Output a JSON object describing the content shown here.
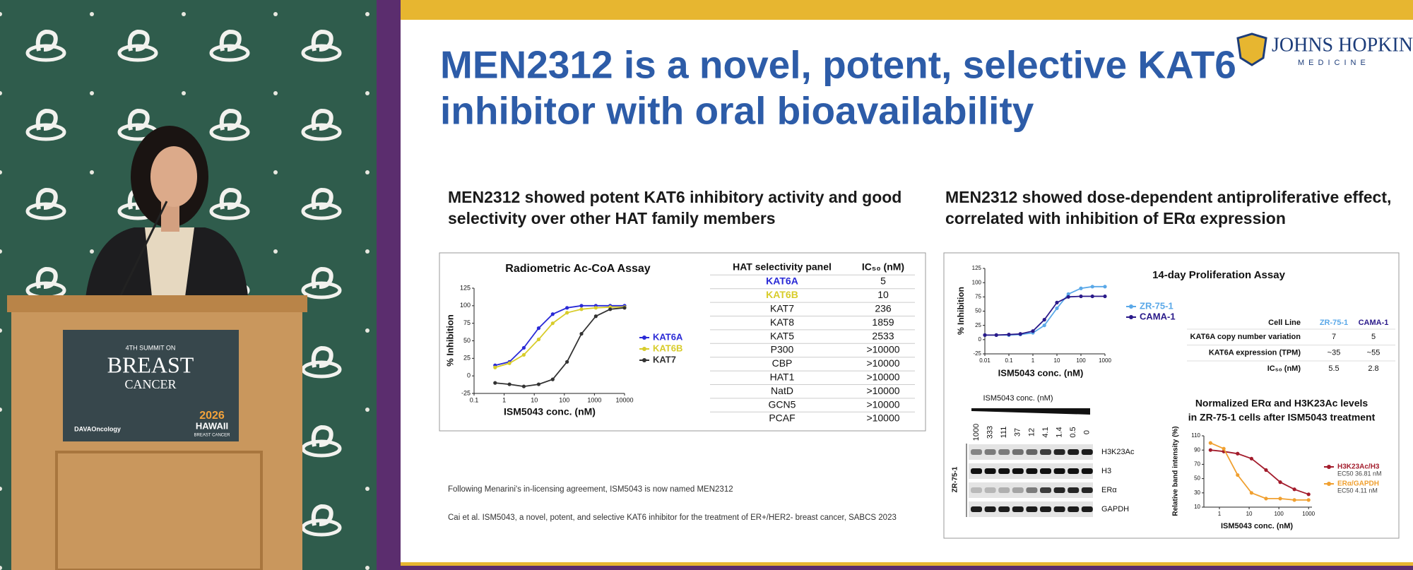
{
  "video": {
    "podium_sign": {
      "edition": "4TH SUMMIT ON",
      "line1": "BREAST",
      "line2": "CANCER",
      "org": "DAVAOncology",
      "year": "2026",
      "place": "HAWAII",
      "place_sub": "BREAST CANCER"
    }
  },
  "slide": {
    "title_lines": [
      "MEN2312 is a novel, potent, selective KAT6",
      "inhibitor with oral bioavailability"
    ],
    "logo": {
      "name": "JOHNS HOPKINS",
      "sub": "MEDICINE"
    },
    "left": {
      "heading_lines": [
        "MEN2312 showed potent KAT6 inhibitory activity and good",
        "selectivity over other HAT family members"
      ],
      "chart": {
        "type": "line",
        "title": "Radiometric Ac-CoA Assay",
        "xlabel": "ISM5043 conc. (nM)",
        "ylabel": "% Inhibition",
        "x_log": true,
        "x": [
          0.5,
          1.5,
          4.5,
          14,
          41,
          123,
          370,
          1111,
          3333,
          10000
        ],
        "xlim": [
          0.1,
          10000
        ],
        "xticks": [
          0.1,
          1,
          10,
          100,
          1000,
          10000
        ],
        "ylim": [
          -25,
          125
        ],
        "yticks": [
          -25,
          0,
          25,
          50,
          75,
          100,
          125
        ],
        "series": [
          {
            "name": "KAT6A",
            "color": "#2a2ad6",
            "values": [
              15,
              20,
              40,
              68,
              88,
              97,
              100,
              100,
              100,
              100
            ]
          },
          {
            "name": "KAT6B",
            "color": "#d8cc2a",
            "values": [
              12,
              18,
              30,
              52,
              75,
              90,
              95,
              97,
              98,
              98
            ]
          },
          {
            "name": "KAT7",
            "color": "#333333",
            "values": [
              -10,
              -12,
              -15,
              -12,
              -5,
              20,
              60,
              85,
              95,
              97
            ]
          }
        ]
      },
      "table": {
        "header": [
          "HAT selectivity panel",
          "IC₅₀ (nM)"
        ],
        "rows": [
          [
            "KAT6A",
            "5"
          ],
          [
            "KAT6B",
            "10"
          ],
          [
            "KAT7",
            "236"
          ],
          [
            "KAT8",
            "1859"
          ],
          [
            "KAT5",
            "2533"
          ],
          [
            "P300",
            ">10000"
          ],
          [
            "CBP",
            ">10000"
          ],
          [
            "HAT1",
            ">10000"
          ],
          [
            "NatD",
            ">10000"
          ],
          [
            "GCN5",
            ">10000"
          ],
          [
            "PCAF",
            ">10000"
          ]
        ]
      },
      "footnotes": [
        "Following Menarini's in-licensing agreement, ISM5043 is now named MEN2312",
        "Cai et al. ISM5043, a novel, potent, and selective KAT6 inhibitor for the treatment of ER+/HER2- breast cancer, SABCS 2023"
      ]
    },
    "right": {
      "heading_lines": [
        "MEN2312 showed dose-dependent antiproliferative effect,",
        "correlated with inhibition of ERα expression"
      ],
      "chart": {
        "type": "line",
        "title": "14-day Proliferation Assay",
        "xlabel": "ISM5043 conc. (nM)",
        "ylabel": "% Inhibition",
        "x_log": true,
        "x": [
          0.01,
          0.03,
          0.1,
          0.3,
          1,
          3,
          10,
          30,
          100,
          300,
          1000
        ],
        "xlim": [
          0.01,
          1000
        ],
        "xticks": [
          0.01,
          0.1,
          1,
          10,
          100,
          1000
        ],
        "ylim": [
          -25,
          125
        ],
        "yticks": [
          -25,
          0,
          25,
          50,
          75,
          100,
          125
        ],
        "series": [
          {
            "name": "ZR-75-1",
            "color": "#5aa8e8",
            "values": [
              8,
              8,
              8,
              9,
              12,
              25,
              55,
              80,
              90,
              93,
              93
            ]
          },
          {
            "name": "CAMA-1",
            "color": "#2a1a8a",
            "values": [
              8,
              8,
              9,
              10,
              15,
              35,
              65,
              75,
              76,
              76,
              76
            ]
          }
        ]
      },
      "cell_table": {
        "header": [
          "Cell Line",
          "ZR-75-1",
          "CAMA-1"
        ],
        "rows": [
          [
            "KAT6A copy number variation",
            "7",
            "5"
          ],
          [
            "KAT6A expression (TPM)",
            "~35",
            "~55"
          ],
          [
            "IC₅₀ (nM)",
            "5.5",
            "2.8"
          ]
        ]
      },
      "blot": {
        "title": "ISM5043 conc. (nM)",
        "lanes": [
          "1000",
          "333",
          "111",
          "37",
          "12",
          "4.1",
          "1.4",
          "0.5",
          "0"
        ],
        "bands": [
          "H3K23Ac",
          "H3",
          "ERα",
          "GAPDH"
        ],
        "cell_line": "ZR-75-1"
      },
      "chart2": {
        "type": "line",
        "title_lines": [
          "Normalized ERα and H3K23Ac levels",
          "in ZR-75-1 cells after ISM5043 treatment"
        ],
        "xlabel": "ISM5043 conc. (nM)",
        "ylabel": "Relative band intensity (%)",
        "x_log": true,
        "x": [
          0.5,
          1.4,
          4.1,
          12,
          37,
          111,
          333,
          1000
        ],
        "xlim": [
          0.3,
          1300
        ],
        "xticks": [
          1,
          10,
          100,
          1000
        ],
        "ylim": [
          10,
          110
        ],
        "yticks": [
          10,
          30,
          50,
          70,
          90,
          110
        ],
        "series": [
          {
            "name": "H3K23Ac/H3",
            "note": "EC50 36.81 nM",
            "color": "#a31c2c",
            "values": [
              90,
              88,
              85,
              78,
              62,
              45,
              35,
              28
            ]
          },
          {
            "name": "ERα/GAPDH",
            "note": "EC50 4.11 nM",
            "color": "#f0a030",
            "values": [
              100,
              92,
              55,
              30,
              22,
              22,
              20,
              20
            ]
          }
        ]
      }
    }
  }
}
